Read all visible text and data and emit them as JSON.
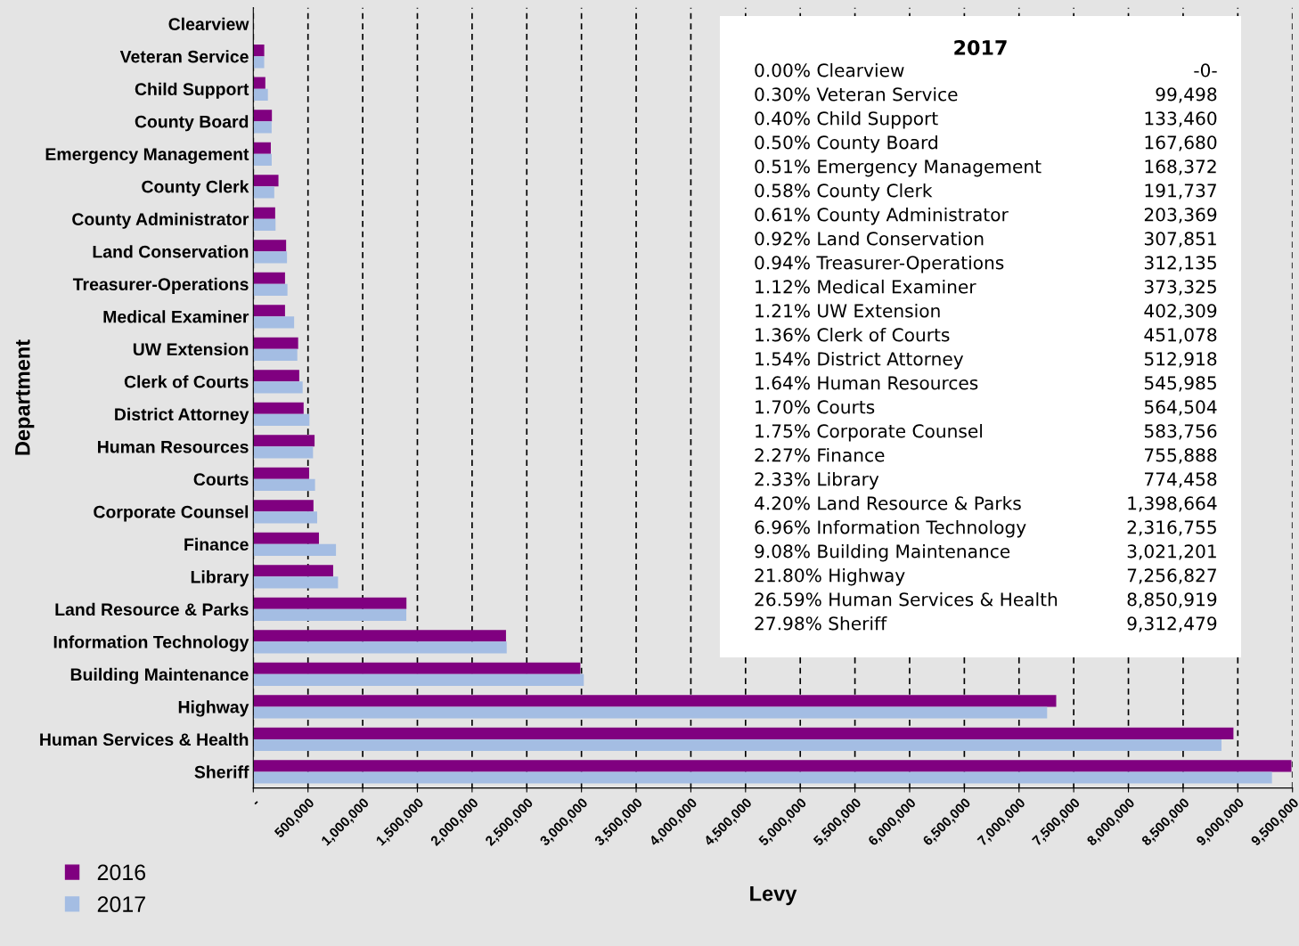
{
  "chart_data": {
    "type": "bar",
    "orientation": "horizontal",
    "xlabel": "Levy",
    "ylabel": "Department",
    "grid": "x",
    "legend": "bottom left",
    "categories": [
      "Clearview",
      "Veteran Service",
      "Child Support",
      "County Board",
      "Emergency Management",
      "County Clerk",
      "County Administrator",
      "Land Conservation",
      "Treasurer-Operations",
      "Medical Examiner",
      "UW Extension",
      "Clerk of Courts",
      "District Attorney",
      "Human Resources",
      "Courts",
      "Corporate Counsel",
      "Finance",
      "Library",
      "Land Resource & Parks",
      "Information Technology",
      "Building Maintenance",
      "Highway",
      "Human Services & Health",
      "Sheriff"
    ],
    "series": [
      {
        "name": "2016",
        "color": "#800080",
        "values": [
          0,
          100000,
          110000,
          170000,
          160000,
          230000,
          200000,
          300000,
          290000,
          290000,
          410000,
          420000,
          460000,
          560000,
          510000,
          550000,
          600000,
          730000,
          1400000,
          2310000,
          2990000,
          7340000,
          8960000,
          9490000
        ]
      },
      {
        "name": "2017",
        "color": "#a4bde3",
        "values": [
          0,
          99498,
          133460,
          167680,
          168372,
          191737,
          203369,
          307851,
          312135,
          373325,
          402309,
          451078,
          512918,
          545985,
          564504,
          583756,
          755888,
          774458,
          1398664,
          2316755,
          3021201,
          7256827,
          8850919,
          9312479
        ]
      }
    ],
    "annotations": [
      "2017",
      "0.00% Clearview",
      "-0-",
      "0.30% Veteran Service",
      "99,498",
      "0.40% Child Support",
      "133,460",
      "0.50% County Board",
      "167,680",
      "0.51% Emergency Management",
      "168,372",
      "0.58% County Clerk",
      "191,737",
      "0.61% County Administrator",
      "203,369",
      "0.92% Land Conservation",
      "307,851",
      "0.94% Treasurer-Operations",
      "312,135",
      "1.12% Medical Examiner",
      "373,325",
      "1.21% UW Extension",
      "402,309",
      "1.36% Clerk of Courts",
      "451,078",
      "1.54% District Attorney",
      "512,918",
      "1.64% Human Resources",
      "545,985",
      "1.70% Courts",
      "564,504",
      "1.75% Corporate Counsel",
      "583,756",
      "2.27% Finance",
      "755,888",
      "2.33% Library",
      "774,458",
      "4.20% Land Resource & Parks",
      "1,398,664",
      "6.96% Information Technology",
      "2,316,755",
      "9.08% Building Maintenance",
      "3,021,201",
      "21.80% Highway",
      "7,256,827",
      "26.59% Human Services & Health",
      "8,850,919",
      "27.98% Sheriff",
      "9,312,479"
    ],
    "xlim": [
      0,
      9500000
    ],
    "xticks": [
      {
        "value": 0,
        "label": "-"
      },
      {
        "value": 500000,
        "label": "500,000"
      },
      {
        "value": 1000000,
        "label": "1,000,000"
      },
      {
        "value": 1500000,
        "label": "1,500,000"
      },
      {
        "value": 2000000,
        "label": "2,000,000"
      },
      {
        "value": 2500000,
        "label": "2,500,000"
      },
      {
        "value": 3000000,
        "label": "3,000,000"
      },
      {
        "value": 3500000,
        "label": "3,500,000"
      },
      {
        "value": 4000000,
        "label": "4,000,000"
      },
      {
        "value": 4500000,
        "label": "4,500,000"
      },
      {
        "value": 5000000,
        "label": "5,000,000"
      },
      {
        "value": 5500000,
        "label": "5,500,000"
      },
      {
        "value": 6000000,
        "label": "6,000,000"
      },
      {
        "value": 6500000,
        "label": "6,500,000"
      },
      {
        "value": 7000000,
        "label": "7,000,000"
      },
      {
        "value": 7500000,
        "label": "7,500,000"
      },
      {
        "value": 8000000,
        "label": "8,000,000"
      },
      {
        "value": 8500000,
        "label": "8,500,000"
      },
      {
        "value": 9000000,
        "label": "9,000,000"
      },
      {
        "value": 9500000,
        "label": "9,500,000"
      }
    ]
  }
}
